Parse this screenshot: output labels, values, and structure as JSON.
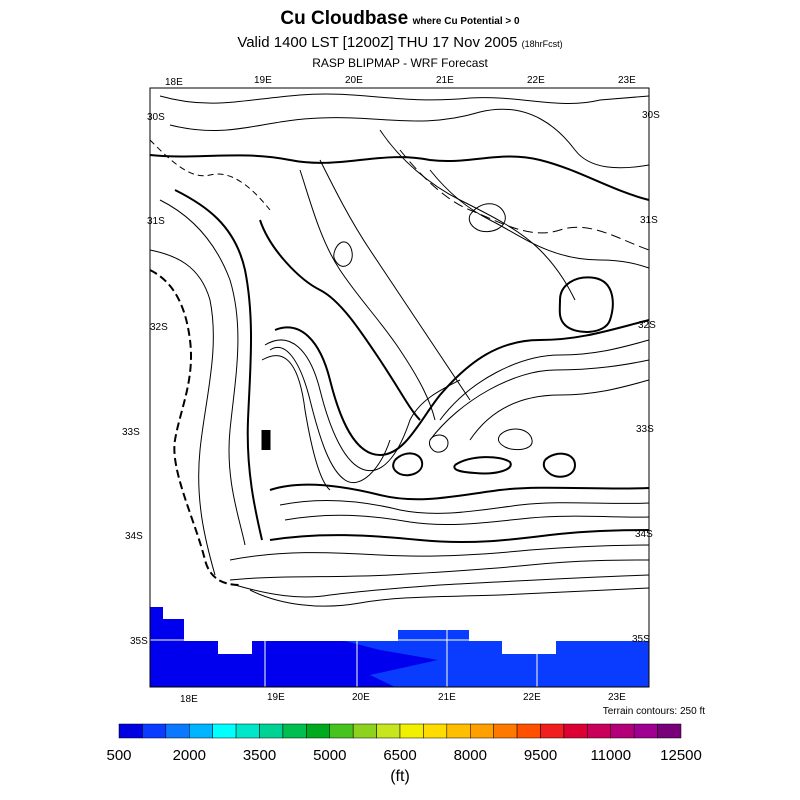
{
  "header": {
    "title": "Cu Cloudbase",
    "title_qualifier": "where Cu Potential > 0",
    "valid_time": "Valid 1400 LST [1200Z] THU 17 Nov 2005",
    "forecast_hours": "(18hrFcst)",
    "model": "RASP BLIPMAP - WRF Forecast"
  },
  "map": {
    "top_lon_labels": [
      "18E",
      "19E",
      "20E",
      "21E",
      "22E",
      "23E"
    ],
    "bottom_lon_labels": [
      "18E",
      "19E",
      "20E",
      "21E",
      "22E",
      "23E"
    ],
    "left_lat_labels": [
      "30S",
      "31S",
      "32S",
      "33S",
      "34S",
      "35S"
    ],
    "right_lat_labels": [
      "30S",
      "31S",
      "32S",
      "33S",
      "34S",
      "35S"
    ],
    "terrain_note": "Terrain contours: 250 ft",
    "colors": {
      "fill_main": "#0000ee",
      "fill_light": "#0a3cff",
      "contour": "#000000",
      "grid": "#ffffff"
    }
  },
  "colorbar": {
    "labels": [
      "500",
      "2000",
      "3500",
      "5000",
      "6500",
      "8000",
      "9500",
      "11000",
      "12500"
    ],
    "unit": "(ft)",
    "colors": [
      "#0000e0",
      "#0a3cff",
      "#0a78ff",
      "#00b4ff",
      "#00ffff",
      "#00e6c8",
      "#00d296",
      "#00be50",
      "#00aa1e",
      "#46c31e",
      "#8cd21e",
      "#c8e61e",
      "#f0f000",
      "#ffdc00",
      "#ffbe00",
      "#ffa000",
      "#ff7800",
      "#ff5000",
      "#f01e1e",
      "#dc0032",
      "#c8005a",
      "#b40078",
      "#a00091",
      "#780078"
    ]
  }
}
